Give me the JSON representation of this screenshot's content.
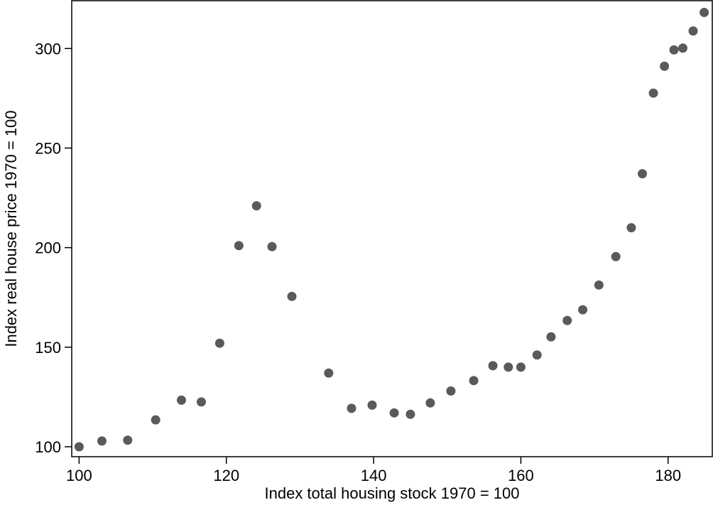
{
  "chart_data": {
    "type": "scatter",
    "title": "",
    "xlabel": "Index total housing stock 1970 = 100",
    "ylabel": "Index real house price 1970 = 100",
    "xlim": [
      99,
      186
    ],
    "ylim": [
      95,
      324
    ],
    "xticks": [
      100,
      120,
      140,
      160,
      180
    ],
    "yticks": [
      100,
      150,
      200,
      250,
      300
    ],
    "grid": false,
    "marker_color": "#5a5a5a",
    "series": [
      {
        "points": [
          [
            100.0,
            100.0
          ],
          [
            103.1,
            102.9
          ],
          [
            106.6,
            103.3
          ],
          [
            110.4,
            113.5
          ],
          [
            113.9,
            123.4
          ],
          [
            116.6,
            122.5
          ],
          [
            119.1,
            152.0
          ],
          [
            121.7,
            201.0
          ],
          [
            124.1,
            221.0
          ],
          [
            126.2,
            200.5
          ],
          [
            128.9,
            175.5
          ],
          [
            133.9,
            137.0
          ],
          [
            137.0,
            119.3
          ],
          [
            139.8,
            120.9
          ],
          [
            142.8,
            117.0
          ],
          [
            145.0,
            116.3
          ],
          [
            147.7,
            122.0
          ],
          [
            150.5,
            128.0
          ],
          [
            153.6,
            133.2
          ],
          [
            156.2,
            140.7
          ],
          [
            158.3,
            140.0
          ],
          [
            160.0,
            140.0
          ],
          [
            162.2,
            146.1
          ],
          [
            164.1,
            155.2
          ],
          [
            166.3,
            163.4
          ],
          [
            168.4,
            168.8
          ],
          [
            170.6,
            181.2
          ],
          [
            172.9,
            195.5
          ],
          [
            175.0,
            210.0
          ],
          [
            176.5,
            237.1
          ],
          [
            178.0,
            277.6
          ],
          [
            179.5,
            291.1
          ],
          [
            180.8,
            299.3
          ],
          [
            182.0,
            300.2
          ],
          [
            183.4,
            308.8
          ],
          [
            184.9,
            318.1
          ]
        ]
      }
    ]
  }
}
